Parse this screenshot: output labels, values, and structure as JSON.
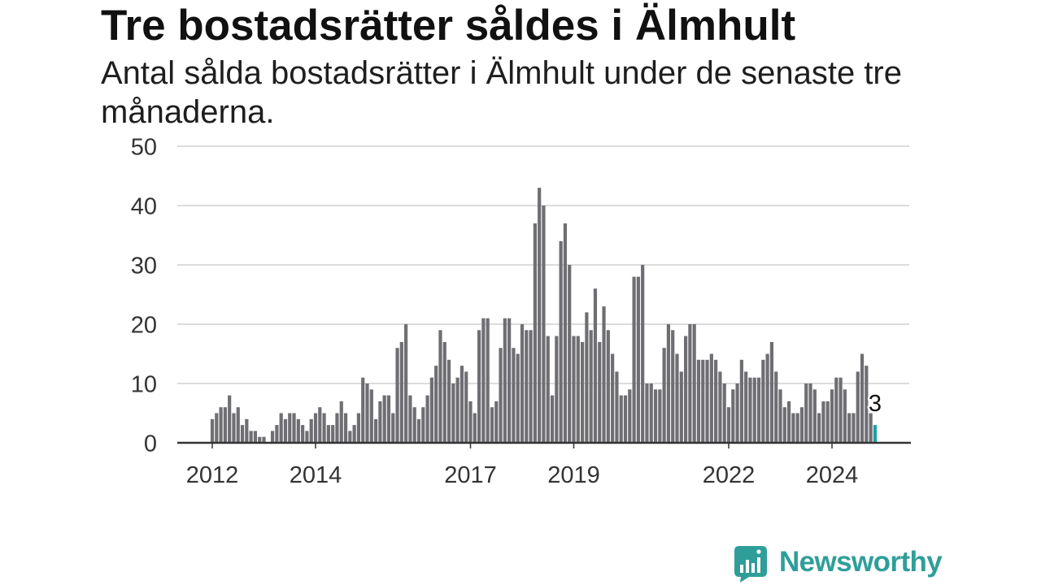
{
  "chart_data": {
    "type": "bar",
    "title": "Tre bostadsrätter såldes i Älmhult",
    "subtitle": "Antal sålda bostadsrätter i Älmhult under de senaste tre månaderna.",
    "xlabel": "",
    "ylabel": "",
    "ylim": [
      0,
      50
    ],
    "y_ticks": [
      0,
      10,
      20,
      30,
      40,
      50
    ],
    "x_tick_labels": [
      "2012",
      "2014",
      "2017",
      "2019",
      "2022",
      "2024"
    ],
    "grid": true,
    "legend": "none",
    "categories": [
      "2012-01",
      "2012-02",
      "2012-03",
      "2012-04",
      "2012-05",
      "2012-06",
      "2012-07",
      "2012-08",
      "2012-09",
      "2012-10",
      "2012-11",
      "2012-12",
      "2013-01",
      "2013-02",
      "2013-03",
      "2013-04",
      "2013-05",
      "2013-06",
      "2013-07",
      "2013-08",
      "2013-09",
      "2013-10",
      "2013-11",
      "2013-12",
      "2014-01",
      "2014-02",
      "2014-03",
      "2014-04",
      "2014-05",
      "2014-06",
      "2014-07",
      "2014-08",
      "2014-09",
      "2014-10",
      "2014-11",
      "2014-12",
      "2015-01",
      "2015-02",
      "2015-03",
      "2015-04",
      "2015-05",
      "2015-06",
      "2015-07",
      "2015-08",
      "2015-09",
      "2015-10",
      "2015-11",
      "2015-12",
      "2016-01",
      "2016-02",
      "2016-03",
      "2016-04",
      "2016-05",
      "2016-06",
      "2016-07",
      "2016-08",
      "2016-09",
      "2016-10",
      "2016-11",
      "2016-12",
      "2017-01",
      "2017-02",
      "2017-03",
      "2017-04",
      "2017-05",
      "2017-06",
      "2017-07",
      "2017-08",
      "2017-09",
      "2017-10",
      "2017-11",
      "2017-12",
      "2018-01",
      "2018-02",
      "2018-03",
      "2018-04",
      "2018-05",
      "2018-06",
      "2018-07",
      "2018-08",
      "2018-09",
      "2018-10",
      "2018-11",
      "2018-12",
      "2019-01",
      "2019-02",
      "2019-03",
      "2019-04",
      "2019-05",
      "2019-06",
      "2019-07",
      "2019-08",
      "2019-09",
      "2019-10",
      "2019-11",
      "2019-12",
      "2020-01",
      "2020-02",
      "2020-03",
      "2020-04",
      "2020-05",
      "2020-06",
      "2020-07",
      "2020-08",
      "2020-09",
      "2020-10",
      "2020-11",
      "2020-12",
      "2021-01",
      "2021-02",
      "2021-03",
      "2021-04",
      "2021-05",
      "2021-06",
      "2021-07",
      "2021-08",
      "2021-09",
      "2021-10",
      "2021-11",
      "2021-12",
      "2022-01",
      "2022-02",
      "2022-03",
      "2022-04",
      "2022-05",
      "2022-06",
      "2022-07",
      "2022-08",
      "2022-09",
      "2022-10",
      "2022-11",
      "2022-12",
      "2023-01",
      "2023-02",
      "2023-03",
      "2023-04",
      "2023-05",
      "2023-06",
      "2023-07",
      "2023-08",
      "2023-09",
      "2023-10",
      "2023-11",
      "2023-12",
      "2024-01",
      "2024-02",
      "2024-03",
      "2024-04",
      "2024-05",
      "2024-06",
      "2024-07",
      "2024-08",
      "2024-09",
      "2024-10",
      "2024-11"
    ],
    "values": [
      4,
      5,
      6,
      6,
      8,
      5,
      6,
      3,
      4,
      2,
      2,
      1,
      1,
      0,
      2,
      3,
      5,
      4,
      5,
      5,
      4,
      3,
      2,
      4,
      5,
      6,
      5,
      3,
      3,
      5,
      7,
      5,
      2,
      3,
      5,
      11,
      10,
      9,
      4,
      7,
      8,
      8,
      5,
      16,
      17,
      20,
      8,
      6,
      4,
      6,
      8,
      11,
      13,
      19,
      17,
      14,
      10,
      11,
      13,
      12,
      7,
      5,
      19,
      21,
      21,
      6,
      7,
      16,
      21,
      21,
      16,
      15,
      20,
      19,
      19,
      37,
      43,
      40,
      18,
      8,
      18,
      34,
      37,
      30,
      18,
      18,
      17,
      22,
      19,
      26,
      17,
      23,
      19,
      15,
      12,
      8,
      8,
      9,
      28,
      28,
      30,
      10,
      10,
      9,
      9,
      16,
      20,
      19,
      15,
      12,
      18,
      20,
      20,
      14,
      14,
      14,
      15,
      14,
      12,
      10,
      6,
      9,
      10,
      14,
      12,
      11,
      11,
      11,
      14,
      15,
      17,
      12,
      9,
      6,
      7,
      5,
      5,
      6,
      10,
      10,
      9,
      5,
      7,
      7,
      9,
      11,
      11,
      9,
      5,
      5,
      12,
      15,
      13,
      5,
      3
    ],
    "highlight": {
      "x": "2024-11",
      "label": "3"
    }
  },
  "colors": {
    "bar": "#6f6e73",
    "highlight": "#17a2a2",
    "brand": "#2f9e99"
  },
  "brand": {
    "name": "Newsworthy",
    "icon": "newsworthy-logo-icon"
  }
}
